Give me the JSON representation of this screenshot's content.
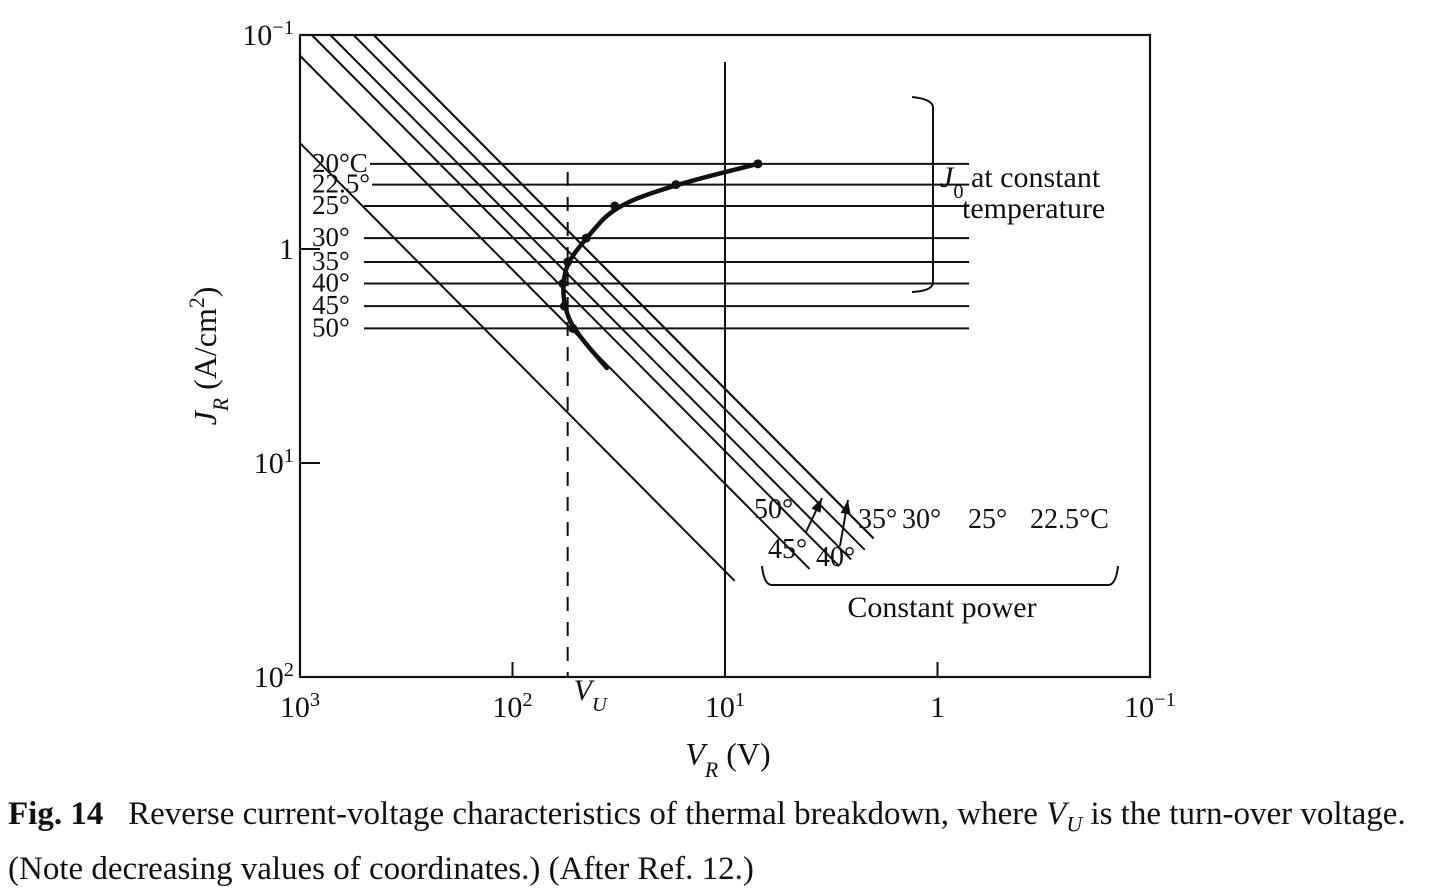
{
  "chart_data": {
    "type": "line",
    "title": "",
    "xlabel": {
      "sym": "V",
      "sub": "R",
      "unit": " (V)"
    },
    "ylabel": {
      "sym": "J",
      "sub": "R",
      "unit": " (A/cm",
      "sup": "2",
      "close": ")"
    },
    "x_axis": {
      "scale": "log",
      "direction": "decreasing",
      "range": [
        1000,
        0.1
      ],
      "ticks": [
        {
          "value": 1000,
          "base": "10",
          "exp": "3"
        },
        {
          "value": 100,
          "base": "10",
          "exp": "2"
        },
        {
          "value": 10,
          "base": "10",
          "exp": "1"
        },
        {
          "value": 1,
          "base": "1",
          "exp": ""
        },
        {
          "value": 0.1,
          "base": "10",
          "exp": "−1"
        }
      ]
    },
    "y_axis": {
      "scale": "log",
      "direction": "decreasing",
      "range": [
        0.1,
        100
      ],
      "ticks": [
        {
          "value": 0.1,
          "base": "10",
          "exp": "−1"
        },
        {
          "value": 1,
          "base": "1",
          "exp": ""
        },
        {
          "value": 10,
          "base": "10",
          "exp": "1"
        },
        {
          "value": 100,
          "base": "10",
          "exp": "2"
        }
      ]
    },
    "constant_temperature_J0": {
      "x_from": 1000,
      "x_to": 0.71,
      "series": [
        {
          "label": "20°C",
          "J0": 0.4
        },
        {
          "label": "22.5°",
          "J0": 0.5
        },
        {
          "label": "25°",
          "J0": 0.63
        },
        {
          "label": "30°",
          "J0": 0.89
        },
        {
          "label": "35°",
          "J0": 1.15
        },
        {
          "label": "40°",
          "J0": 1.45
        },
        {
          "label": "45°",
          "J0": 1.85
        },
        {
          "label": "50°",
          "J0": 2.35
        }
      ]
    },
    "constant_power": {
      "note": "lines of slope -1 on log-log axes (J_R x V_R = const)",
      "series": [
        {
          "label": "50°",
          "power": 45,
          "x_end": 2.0
        },
        {
          "label": "45°",
          "power": 45,
          "x_end": 2.0
        },
        {
          "label": "40°",
          "power": 56,
          "x_end": 2.2
        },
        {
          "label": "35°",
          "power": 72,
          "x_end": 2.55
        },
        {
          "label": "30°",
          "power": 88,
          "x_end": 2.9
        },
        {
          "label": "25°",
          "power": 125,
          "x_end": 4.0
        },
        {
          "label": "22.5°C",
          "power": 320,
          "x_end": 9.0
        }
      ]
    },
    "turnover_curve": {
      "points": [
        [
          7.0,
          0.4
        ],
        [
          17,
          0.5
        ],
        [
          33,
          0.63
        ],
        [
          45,
          0.89
        ],
        [
          55,
          1.15
        ],
        [
          58,
          1.45
        ],
        [
          57,
          1.85
        ],
        [
          52,
          2.35
        ],
        [
          36,
          3.6
        ]
      ]
    },
    "Vu": {
      "sym": "V",
      "sub": "U",
      "value": 55
    },
    "reference_line_x": 10,
    "annotations": {
      "J0_bracket": {
        "sym": "J",
        "sub": "0",
        "text1": " at constant",
        "text2": "temperature"
      },
      "constant_power_label": "Constant power",
      "power_labels": [
        "50°",
        "45°",
        "40°",
        "35°",
        "30°",
        "25°",
        "22.5°C"
      ]
    }
  },
  "caption": {
    "fig": "Fig. 14",
    "text1": "Reverse current-voltage characteristics of thermal breakdown, where ",
    "sym": "V",
    "sub": "U",
    "text2": " is the turn-over voltage. (Note decreasing values of coordinates.) (After Ref. 12.)"
  }
}
